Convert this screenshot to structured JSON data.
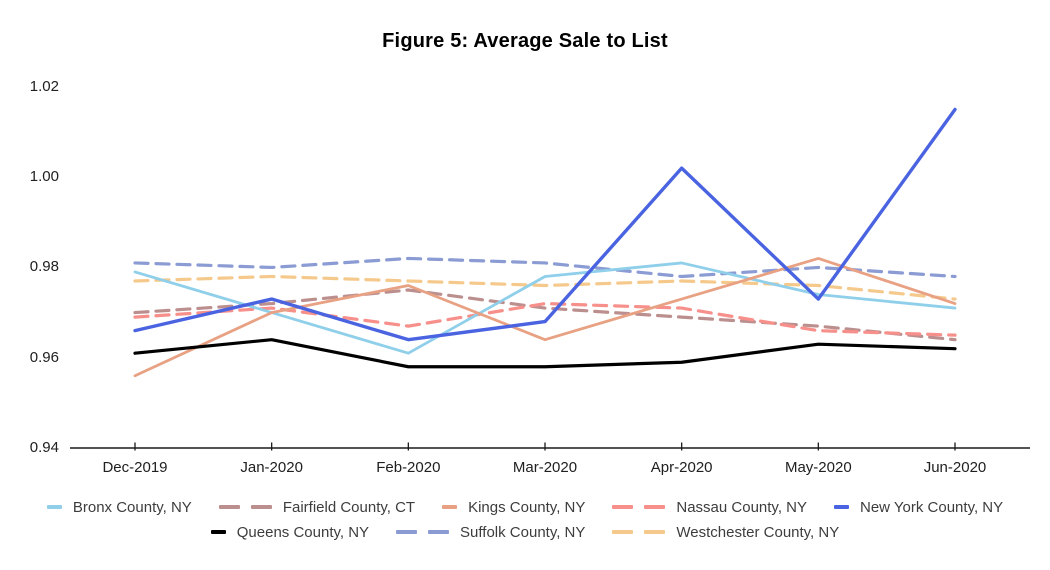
{
  "title": "Figure 5: Average Sale to List",
  "chart_data": {
    "type": "line",
    "title": "Figure 5: Average Sale to List",
    "xlabel": "",
    "ylabel": "",
    "grid": false,
    "legend_position": "bottom",
    "ylim": [
      0.94,
      1.02
    ],
    "yticks": [
      "0.94",
      "0.96",
      "0.98",
      "1.00",
      "1.02"
    ],
    "ytick_values": [
      0.94,
      0.96,
      0.98,
      1.0,
      1.02
    ],
    "x": [
      "Dec-2019",
      "Jan-2020",
      "Feb-2020",
      "Mar-2020",
      "Apr-2020",
      "May-2020",
      "Jun-2020"
    ],
    "series": [
      {
        "name": "Bronx County, NY",
        "color": "#8FCFEA",
        "style": "solid",
        "width": 2.8,
        "values": [
          0.979,
          0.97,
          0.961,
          0.978,
          0.981,
          0.974,
          0.971
        ]
      },
      {
        "name": "Fairfield County, CT",
        "color": "#BC8F8F",
        "style": "dashed",
        "width": 3.2,
        "values": [
          0.97,
          0.972,
          0.975,
          0.971,
          0.969,
          0.967,
          0.964
        ]
      },
      {
        "name": "Kings County, NY",
        "color": "#E8A183",
        "style": "solid",
        "width": 2.8,
        "values": [
          0.956,
          0.97,
          0.976,
          0.964,
          0.973,
          0.982,
          0.972
        ]
      },
      {
        "name": "Nassau County, NY",
        "color": "#F78F8A",
        "style": "dashed",
        "width": 3.2,
        "values": [
          0.969,
          0.971,
          0.967,
          0.972,
          0.971,
          0.966,
          0.965
        ]
      },
      {
        "name": "New York County, NY",
        "color": "#4A63E1",
        "style": "solid",
        "width": 3.4,
        "values": [
          0.966,
          0.973,
          0.964,
          0.968,
          1.002,
          0.973,
          1.015
        ]
      },
      {
        "name": "Queens County, NY",
        "color": "#000000",
        "style": "solid",
        "width": 3.2,
        "values": [
          0.961,
          0.964,
          0.958,
          0.958,
          0.959,
          0.963,
          0.962
        ]
      },
      {
        "name": "Suffolk County, NY",
        "color": "#8B9BD3",
        "style": "dashed",
        "width": 3.2,
        "values": [
          0.981,
          0.98,
          0.982,
          0.981,
          0.978,
          0.98,
          0.978
        ]
      },
      {
        "name": "Westchester County, NY",
        "color": "#F5C98C",
        "style": "dashed",
        "width": 3.2,
        "values": [
          0.977,
          0.978,
          0.977,
          0.976,
          0.977,
          0.976,
          0.973
        ]
      }
    ],
    "axis_color": "#1a1a1a"
  }
}
